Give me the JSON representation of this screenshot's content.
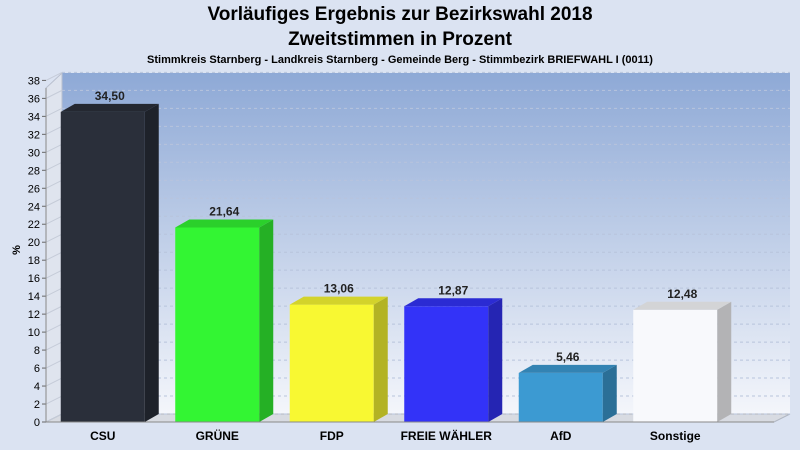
{
  "chart_data": {
    "type": "bar",
    "title": "Vorläufiges Ergebnis zur Bezirkswahl 2018",
    "title2": "Zweitstimmen in Prozent",
    "subtitle": "Stimmkreis Starnberg - Landkreis Starnberg - Gemeinde Berg - Stimmbezirk BRIEFWAHL I (0011)",
    "ylabel": "%",
    "xlabel": "",
    "ylim": [
      0,
      38
    ],
    "yticks": [
      "0",
      "2",
      "4",
      "6",
      "8",
      "10",
      "12",
      "14",
      "16",
      "18",
      "20",
      "22",
      "24",
      "26",
      "28",
      "30",
      "32",
      "34",
      "36",
      "38"
    ],
    "grid": true,
    "categories": [
      "CSU",
      "GRÜNE",
      "FDP",
      "FREIE WÄHLER",
      "AfD",
      "Sonstige"
    ],
    "values": [
      34.5,
      21.64,
      13.06,
      12.87,
      5.46,
      12.48
    ],
    "value_labels": [
      "34,50",
      "21,64",
      "13,06",
      "12,87",
      "5,46",
      "12,48"
    ],
    "colors": [
      "#2a2f3a",
      "#33f533",
      "#f8f832",
      "#3333f8",
      "#3c9ad2",
      "#f8f9fc"
    ]
  }
}
